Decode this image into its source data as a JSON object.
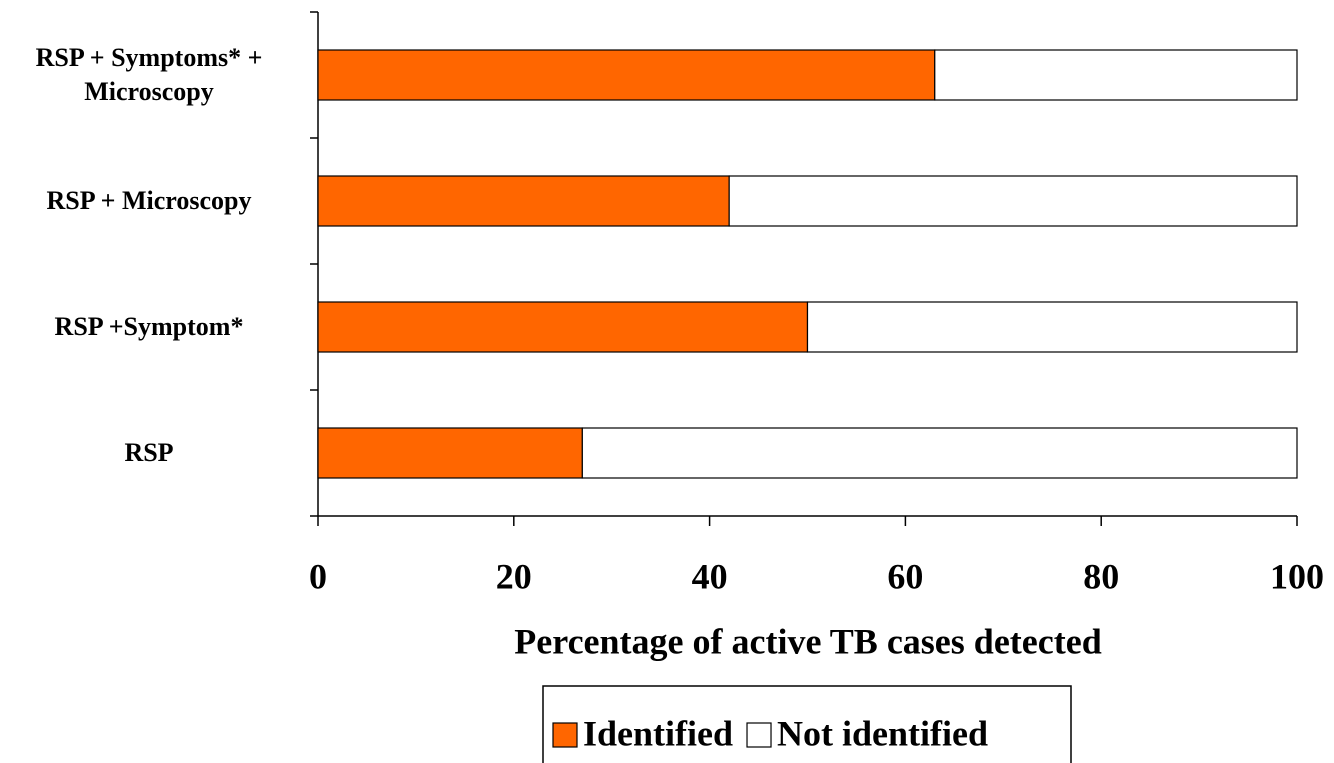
{
  "chart_data": {
    "type": "stacked-bar-horizontal",
    "x_label": "Percentage of active TB cases detected",
    "categories": [
      "RSP + Symptoms* + Microscopy",
      "RSP + Microscopy",
      "RSP +Symptom*",
      "RSP"
    ],
    "series": [
      {
        "name": "Identified",
        "color": "#ff6600",
        "values": [
          63,
          42,
          50,
          27
        ]
      },
      {
        "name": "Not identified",
        "color": "#ffffff",
        "values": [
          37,
          58,
          50,
          73
        ]
      }
    ],
    "xlim": [
      0,
      100
    ],
    "xticks": [
      0,
      20,
      40,
      60,
      80,
      100
    ]
  }
}
